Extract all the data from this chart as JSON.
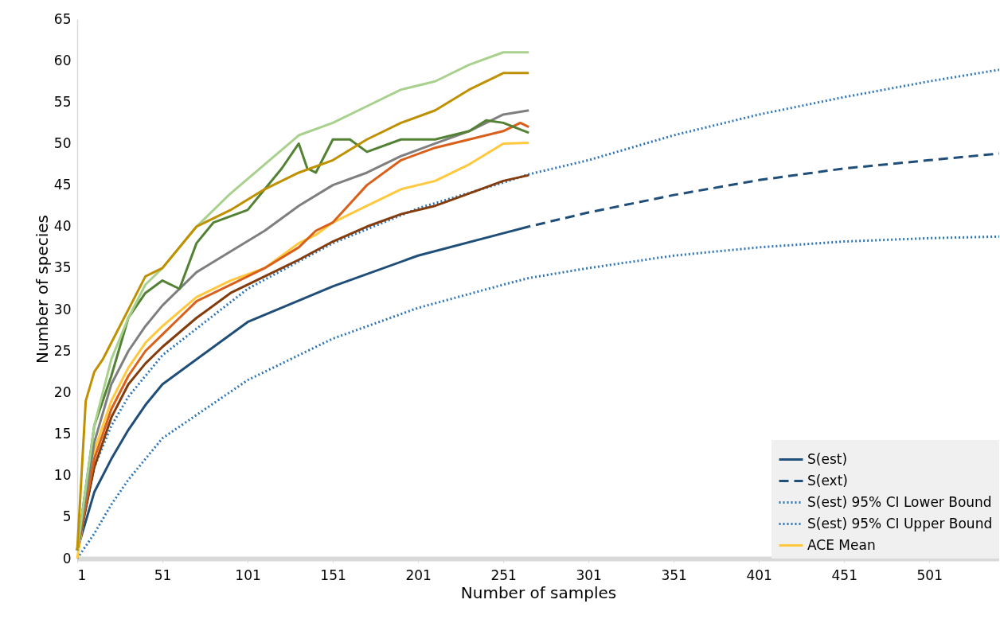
{
  "chart_data": {
    "type": "line",
    "xlabel": "Number of samples",
    "ylabel": "Number of species",
    "xlim": [
      1,
      542
    ],
    "xticks": [
      1,
      51,
      101,
      151,
      201,
      251,
      301,
      351,
      401,
      451,
      501
    ],
    "ylim": [
      0,
      65
    ],
    "yticks": [
      0,
      5,
      10,
      15,
      20,
      25,
      30,
      35,
      40,
      45,
      50,
      55,
      60,
      65
    ],
    "grid": false,
    "legend": "bottom right",
    "marker": "none",
    "series": [
      {
        "name": "S(est)",
        "color": "#1f4e79",
        "line_style": "solid",
        "x": [
          1,
          11,
          21,
          31,
          41,
          51,
          101,
          151,
          201,
          251,
          266
        ],
        "values": [
          1,
          8,
          12,
          15.5,
          18.5,
          21,
          28.5,
          32.8,
          36.5,
          39.2,
          40
        ]
      },
      {
        "name": "S(ext)",
        "color": "#1f4e79",
        "line_style": "dashed",
        "x": [
          266,
          301,
          351,
          401,
          451,
          501,
          542
        ],
        "values": [
          40,
          41.7,
          43.8,
          45.6,
          47,
          48,
          48.8
        ]
      },
      {
        "name": "S(est) 95% CI Lower Bound",
        "color": "#2e75b6",
        "line_style": "dotted",
        "x": [
          1,
          11,
          21,
          31,
          41,
          51,
          101,
          151,
          201,
          251,
          266,
          301,
          351,
          401,
          451,
          501,
          542
        ],
        "values": [
          0,
          3,
          6.5,
          9.5,
          12,
          14.5,
          21.5,
          26.5,
          30.2,
          33,
          33.8,
          35,
          36.5,
          37.5,
          38.2,
          38.6,
          38.8
        ]
      },
      {
        "name": "S(est) 95% CI Upper Bound",
        "color": "#2e75b6",
        "line_style": "dotted",
        "x": [
          1,
          11,
          21,
          31,
          41,
          51,
          101,
          151,
          201,
          251,
          266,
          301,
          351,
          401,
          451,
          501,
          542
        ],
        "values": [
          1,
          11,
          16,
          19.5,
          22,
          24.5,
          32.5,
          38,
          42.2,
          45.3,
          46.3,
          48,
          51,
          53.5,
          55.6,
          57.5,
          58.9
        ]
      },
      {
        "name": "ACE Mean",
        "color": "#ffc83d",
        "line_style": "solid",
        "x": [
          1,
          11,
          21,
          31,
          41,
          51,
          71,
          91,
          111,
          131,
          141,
          151,
          171,
          191,
          211,
          231,
          251,
          266
        ],
        "values": [
          0,
          13,
          19,
          23,
          26,
          28,
          31.5,
          33.5,
          35,
          38,
          39,
          40.5,
          42.5,
          44.5,
          45.5,
          47.5,
          50,
          50.1
        ]
      },
      {
        "color": "#843c0c",
        "line_style": "solid",
        "x": [
          1,
          11,
          21,
          31,
          41,
          51,
          71,
          91,
          111,
          131,
          151,
          171,
          191,
          211,
          231,
          251,
          266
        ],
        "values": [
          1,
          11,
          17,
          21,
          23.5,
          25.5,
          29,
          32,
          34,
          36,
          38.2,
          40,
          41.5,
          42.5,
          44,
          45.5,
          46.2
        ]
      },
      {
        "color": "#d95f1b",
        "line_style": "solid",
        "x": [
          1,
          11,
          21,
          31,
          41,
          51,
          61,
          71,
          91,
          111,
          131,
          141,
          151,
          171,
          191,
          211,
          231,
          251,
          261,
          266
        ],
        "values": [
          1,
          12,
          18,
          22,
          25,
          27,
          29,
          31,
          33,
          35,
          37.5,
          39.5,
          40.5,
          45,
          48,
          49.5,
          50.5,
          51.5,
          52.5,
          52
        ]
      },
      {
        "color": "#7f7f7f",
        "line_style": "solid",
        "x": [
          1,
          11,
          21,
          31,
          41,
          51,
          71,
          91,
          111,
          131,
          151,
          171,
          191,
          211,
          231,
          251,
          266
        ],
        "values": [
          1,
          14,
          21,
          25,
          28,
          30.5,
          34.5,
          37,
          39.5,
          42.5,
          45,
          46.5,
          48.5,
          50,
          51.5,
          53.5,
          54
        ]
      },
      {
        "color": "#548235",
        "line_style": "solid",
        "x": [
          1,
          11,
          21,
          31,
          41,
          51,
          61,
          71,
          81,
          101,
          121,
          131,
          136,
          141,
          151,
          161,
          171,
          191,
          211,
          231,
          241,
          251,
          266
        ],
        "values": [
          1,
          16,
          22,
          29,
          32,
          33.5,
          32.5,
          38,
          40.5,
          42,
          47,
          50,
          47,
          46.5,
          50.5,
          50.5,
          49,
          50.5,
          50.5,
          51.5,
          52.8,
          52.5,
          51.3
        ]
      },
      {
        "color": "#a9d18e",
        "line_style": "solid",
        "x": [
          1,
          11,
          21,
          31,
          41,
          51,
          71,
          91,
          111,
          131,
          151,
          171,
          191,
          211,
          231,
          251,
          266
        ],
        "values": [
          1,
          16,
          24,
          29,
          33,
          35,
          40,
          44,
          47.5,
          51,
          52.5,
          54.5,
          56.5,
          57.5,
          59.5,
          61,
          61
        ]
      },
      {
        "color": "#bf9000",
        "line_style": "solid",
        "x": [
          1,
          6,
          11,
          16,
          21,
          31,
          41,
          51,
          71,
          91,
          111,
          131,
          151,
          171,
          191,
          211,
          231,
          251,
          266
        ],
        "values": [
          1,
          19,
          22.5,
          24,
          26,
          30,
          34,
          35,
          40,
          42,
          44.5,
          46.5,
          48,
          50.5,
          52.5,
          54,
          56.5,
          58.5,
          58.5
        ]
      }
    ]
  }
}
